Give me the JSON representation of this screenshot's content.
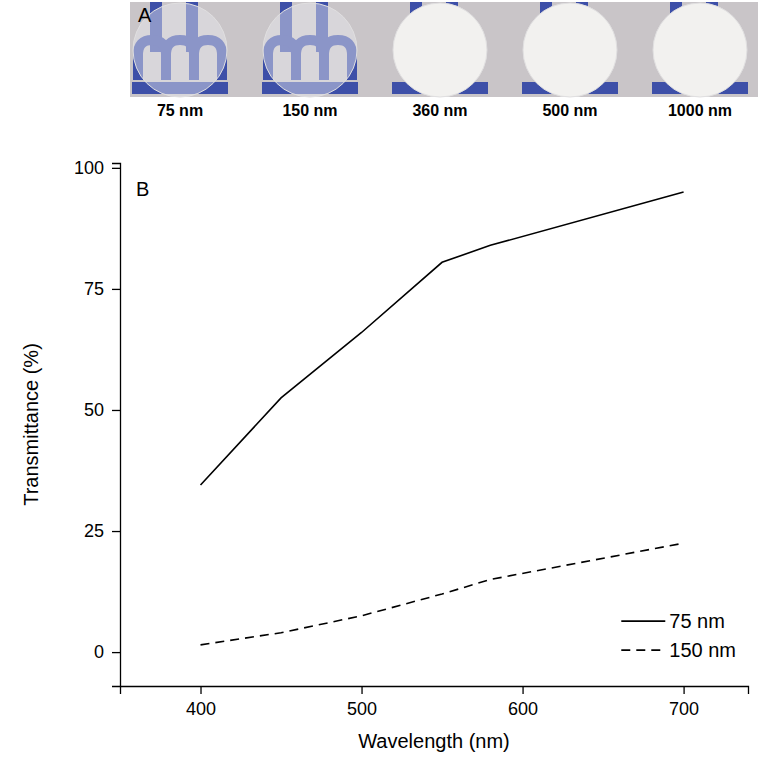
{
  "photo": {
    "letter": "A",
    "labels": [
      "75 nm",
      "150 nm",
      "360 nm",
      "500 nm",
      "1000 nm"
    ]
  },
  "chart_data": {
    "type": "line",
    "panel_label": "B",
    "x_label": "Wavelength (nm)",
    "y_label": "Transmittance (%)",
    "x": [
      400,
      450,
      500,
      550,
      580,
      700
    ],
    "series": [
      {
        "name": "75 nm",
        "color": "#000000",
        "line_style": "solid",
        "values": [
          34.5,
          52.5,
          66,
          80.5,
          84,
          95
        ]
      },
      {
        "name": "150 nm",
        "color": "#000000",
        "line_style": "dashed",
        "values": [
          1.5,
          4,
          7.5,
          12,
          15,
          22.5
        ]
      }
    ],
    "xlim": [
      350,
      740
    ],
    "xticks": [
      400,
      500,
      600,
      700
    ],
    "ylim": [
      -7,
      101
    ],
    "yticks": [
      0,
      25,
      50,
      75,
      100
    ],
    "legend": "lower right",
    "grid": false
  }
}
